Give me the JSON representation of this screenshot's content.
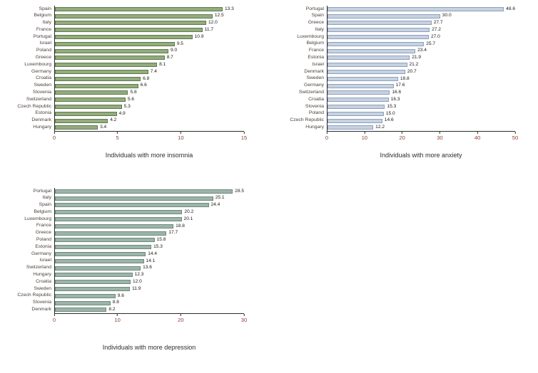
{
  "page": {
    "background": "#ffffff"
  },
  "chart_data": [
    {
      "type": "bar",
      "orientation": "horizontal",
      "name": "insomnia-chart",
      "xlabel": "Individuals with more insomnia",
      "categories": [
        "Spain",
        "Belgium",
        "Italy",
        "France",
        "Portugal",
        "Israel",
        "Poland",
        "Greece",
        "Luxembourg",
        "Germany",
        "Croatia",
        "Sweden",
        "Slovenia",
        "Switzerland",
        "Czech Republic",
        "Estonia",
        "Denmark",
        "Hungary"
      ],
      "values": [
        13.3,
        12.5,
        12.0,
        11.7,
        10.9,
        9.5,
        9.0,
        8.7,
        8.1,
        7.4,
        6.8,
        6.6,
        5.8,
        5.6,
        5.3,
        4.9,
        4.2,
        3.4
      ],
      "xlim": [
        0,
        15
      ],
      "xticks": [
        0,
        5,
        10,
        15
      ],
      "bar_fill": "#93ac7c",
      "bar_border": "#60794f",
      "value_labels": true,
      "grid": false,
      "legend": "none"
    },
    {
      "type": "bar",
      "orientation": "horizontal",
      "name": "anxiety-chart",
      "xlabel": "Individuals with more anxiety",
      "categories": [
        "Portugal",
        "Spain",
        "Greece",
        "Italy",
        "Luxembourg",
        "Belgium",
        "France",
        "Estonia",
        "Israel",
        "Denmark",
        "Sweden",
        "Germany",
        "Switzerland",
        "Croatia",
        "Slovenia",
        "Poland",
        "Czech Republic",
        "Hungary"
      ],
      "values": [
        48.6,
        30.0,
        27.7,
        27.2,
        27.0,
        25.7,
        23.4,
        21.9,
        21.2,
        20.7,
        18.8,
        17.6,
        16.6,
        16.3,
        15.3,
        15.0,
        14.6,
        12.2
      ],
      "xlim": [
        0,
        50
      ],
      "xticks": [
        0,
        10,
        20,
        30,
        40,
        50
      ],
      "bar_fill": "#c6d2e2",
      "bar_border": "#8fa0ba",
      "value_labels": true,
      "grid": false,
      "legend": "none"
    },
    {
      "type": "bar",
      "orientation": "horizontal",
      "name": "depression-chart",
      "xlabel": "Individuals with more depression",
      "categories": [
        "Portugal",
        "Italy",
        "Spain",
        "Belgium",
        "Luxembourg",
        "France",
        "Greece",
        "Poland",
        "Estonia",
        "Germany",
        "Israel",
        "Switzerland",
        "Hungary",
        "Croatia",
        "Sweden",
        "Czech Republic",
        "Slovenia",
        "Denmark"
      ],
      "values": [
        28.5,
        25.1,
        24.4,
        20.2,
        20.1,
        18.8,
        17.7,
        15.8,
        15.3,
        14.4,
        14.1,
        13.6,
        12.3,
        12.0,
        11.9,
        9.6,
        8.8,
        8.2
      ],
      "xlim": [
        0,
        30
      ],
      "xticks": [
        0,
        10,
        20,
        30
      ],
      "bar_fill": "#9db4a9",
      "bar_border": "#6d8a7d",
      "value_labels": true,
      "grid": false,
      "legend": "none"
    }
  ]
}
